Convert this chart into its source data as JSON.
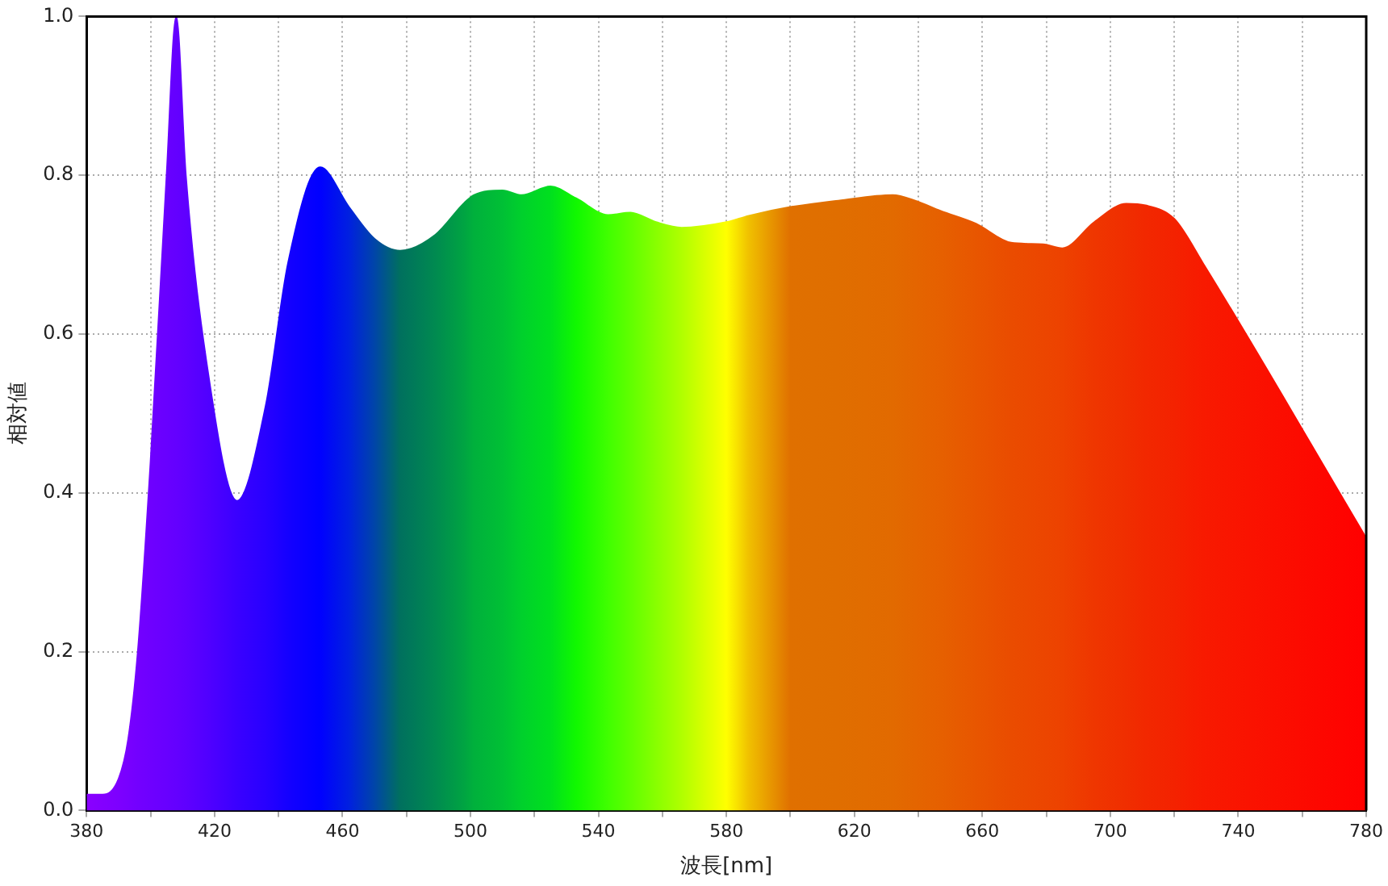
{
  "chart_data": {
    "type": "area",
    "xlabel": "波長[nm]",
    "ylabel": "相対値",
    "xlim": [
      380,
      780
    ],
    "ylim": [
      0,
      1
    ],
    "xticks": [
      380,
      {
        "value": 400,
        "label": null
      },
      420,
      {
        "value": 440,
        "label": null
      },
      460,
      {
        "value": 480,
        "label": null
      },
      500,
      {
        "value": 520,
        "label": null
      },
      540,
      {
        "value": 560,
        "label": null
      },
      580,
      {
        "value": 600,
        "label": null
      },
      620,
      {
        "value": 640,
        "label": null
      },
      660,
      {
        "value": 680,
        "label": null
      },
      700,
      {
        "value": 720,
        "label": null
      },
      740,
      {
        "value": 760,
        "label": null
      },
      780
    ],
    "yticks": [
      {
        "value": 0,
        "label": "0.0"
      },
      {
        "value": 0.2,
        "label": "0.2"
      },
      {
        "value": 0.4,
        "label": "0.4"
      },
      {
        "value": 0.6,
        "label": "0.6"
      },
      {
        "value": 0.8,
        "label": "0.8"
      },
      {
        "value": 1,
        "label": "1.0"
      }
    ],
    "grid": true,
    "legend": false,
    "series": [
      {
        "x": [
          380,
          385,
          390,
          393,
          396,
          400,
          405,
          408,
          411,
          418,
          427,
          436,
          443,
          453,
          462,
          470,
          478,
          489,
          498,
          501,
          510,
          516,
          525,
          533,
          543,
          550,
          558,
          566,
          580,
          587,
          600,
          615,
          632,
          639,
          647,
          658,
          669,
          679,
          685,
          695,
          705,
          711,
          720,
          729,
          780
        ],
        "values": [
          0.02,
          0.02,
          0.04,
          0.09,
          0.2,
          0.44,
          0.8,
          1.0,
          0.8,
          0.55,
          0.39,
          0.51,
          0.69,
          0.81,
          0.76,
          0.72,
          0.705,
          0.725,
          0.765,
          0.775,
          0.781,
          0.775,
          0.786,
          0.771,
          0.75,
          0.753,
          0.741,
          0.734,
          0.741,
          0.749,
          0.76,
          0.768,
          0.775,
          0.768,
          0.755,
          0.739,
          0.715,
          0.713,
          0.708,
          0.741,
          0.764,
          0.762,
          0.745,
          0.689,
          0.343
        ],
        "colors": [
          "#8a00ff",
          "#8300ff",
          "#7d00ff",
          "#7800ff",
          "#7300ff",
          "#6e00ff",
          "#6800ff",
          "#6400ff",
          "#5f00ff",
          "#5000ff",
          "#3a00ff",
          "#2800ff",
          "#1400ff",
          "#0000ff",
          "#0020e0",
          "#0045a8",
          "#00705e",
          "#008a50",
          "#00a442",
          "#00b03c",
          "#00c035",
          "#00d02c",
          "#00e01e",
          "#10f800",
          "#40ff00",
          "#60ff00",
          "#88ff00",
          "#b0ff00",
          "#ffff00",
          "#f0c000",
          "#e07000",
          "#e06e00",
          "#e26a00",
          "#e46500",
          "#e66000",
          "#e85600",
          "#ea4c00",
          "#ec4600",
          "#ed4200",
          "#ef3600",
          "#f02e00",
          "#f22800",
          "#f42200",
          "#f81a00",
          "#ff0000"
        ]
      }
    ]
  }
}
